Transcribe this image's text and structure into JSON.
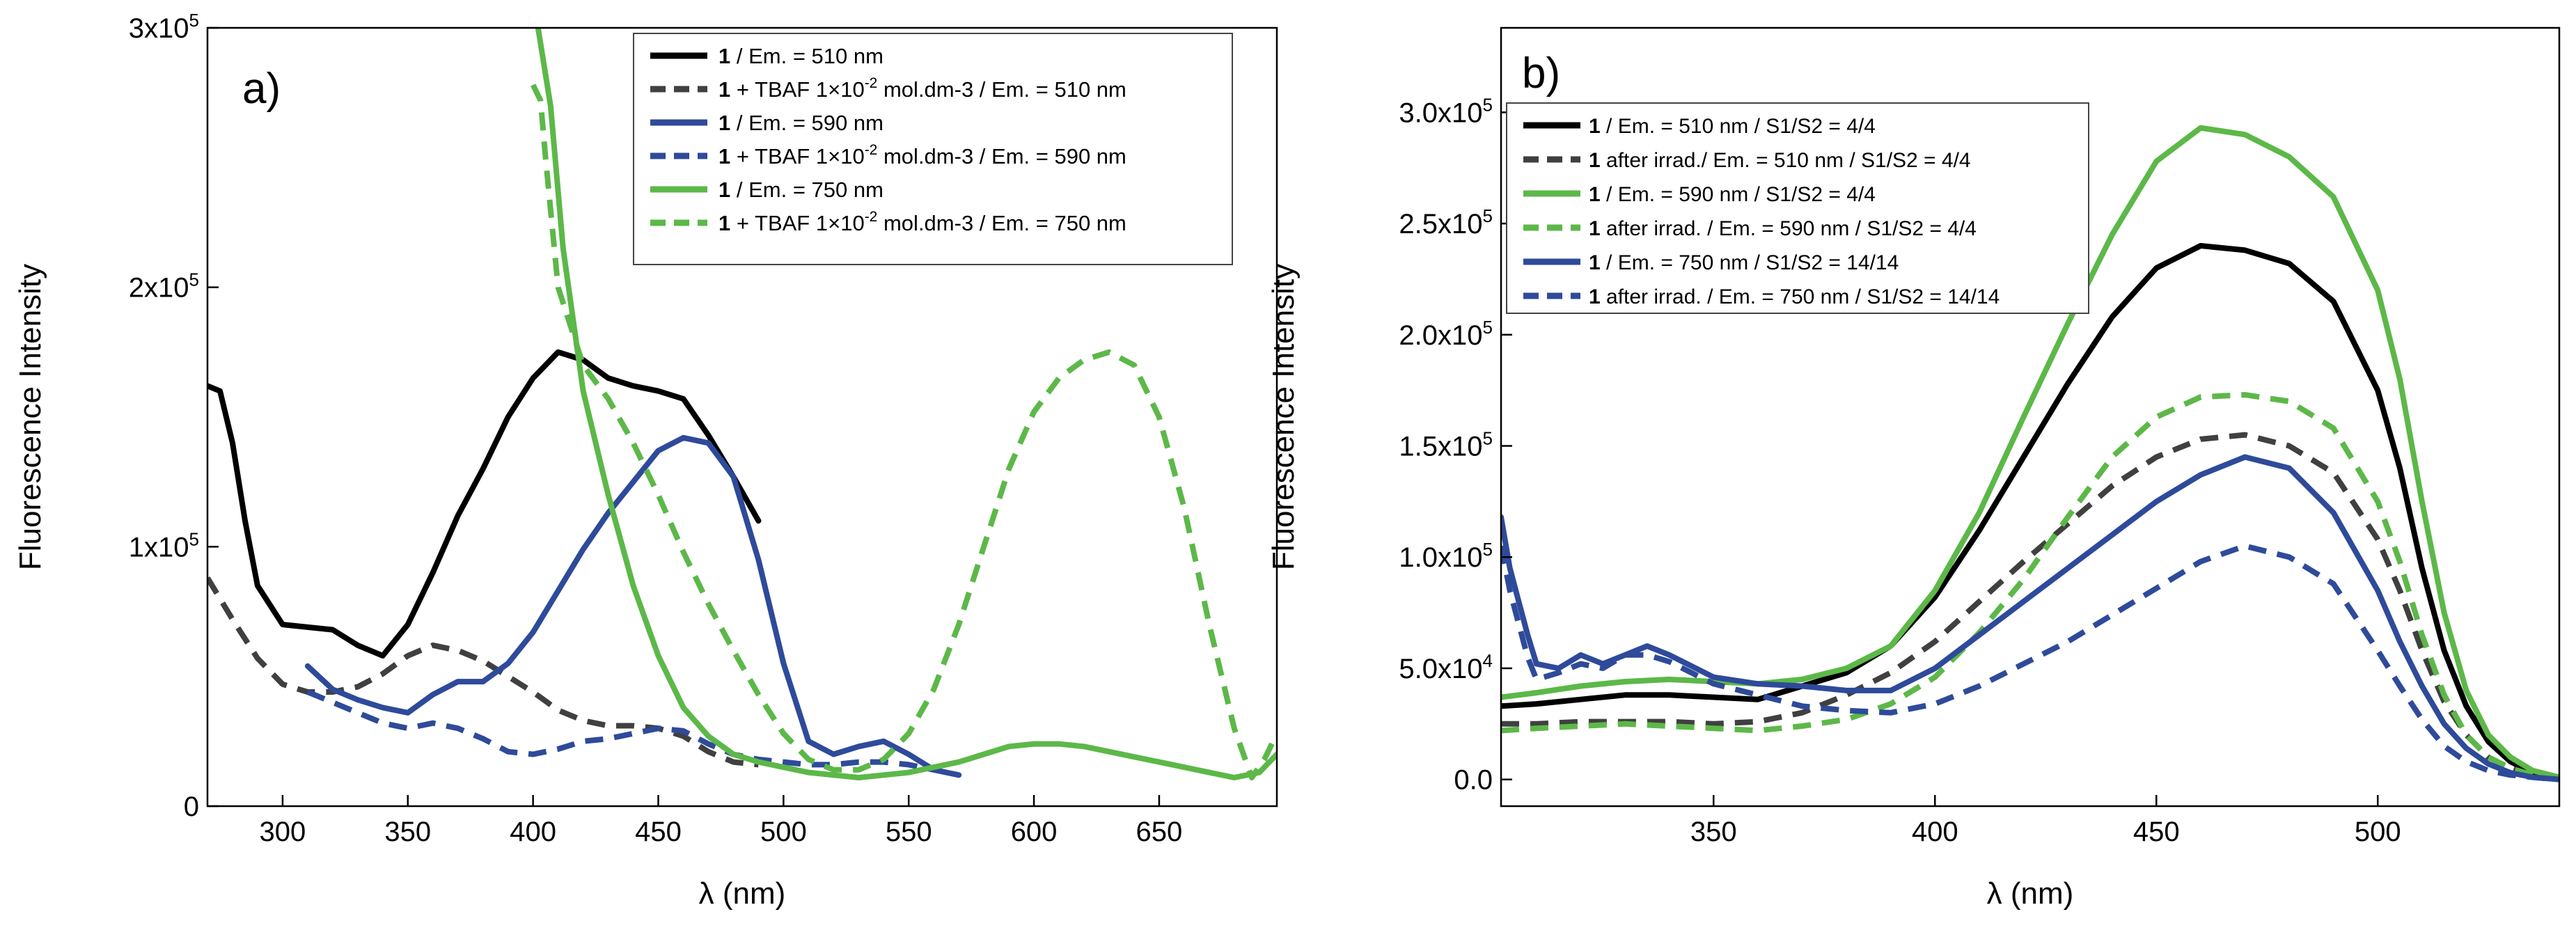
{
  "figure_name": "fluorescence-spectra-figure",
  "chart_data": [
    {
      "type": "line",
      "panel_label": "a)",
      "xlabel": "λ (nm)",
      "ylabel": "Fluorescence Intensity",
      "xlim": [
        270,
        697
      ],
      "ylim": [
        0,
        300000
      ],
      "xticks": [
        300,
        350,
        400,
        450,
        500,
        550,
        600,
        650
      ],
      "xtick_labels": [
        "300",
        "350",
        "400",
        "450",
        "500",
        "550",
        "600",
        "650"
      ],
      "yticks": [
        0,
        100000,
        200000,
        300000
      ],
      "ytick_labels": [
        {
          "base": "0",
          "exp": ""
        },
        {
          "base": "1x10",
          "exp": "5"
        },
        {
          "base": "2x10",
          "exp": "5"
        },
        {
          "base": "3x10",
          "exp": "5"
        }
      ],
      "legend_position": "top-right",
      "series": [
        {
          "name": "1 / Em. = 510 nm",
          "compound": "1",
          "text": " / Em. = 510 nm",
          "exp": "",
          "tail": "",
          "color": "#000000",
          "dash": "solid",
          "x": [
            270,
            275,
            280,
            285,
            290,
            300,
            310,
            320,
            330,
            340,
            350,
            360,
            370,
            380,
            390,
            400,
            410,
            420,
            430,
            440,
            450,
            460,
            470,
            480,
            490
          ],
          "y": [
            162000,
            160000,
            140000,
            110000,
            85000,
            70000,
            69000,
            68000,
            62000,
            58000,
            70000,
            90000,
            112000,
            130000,
            150000,
            165000,
            175000,
            172000,
            165000,
            162000,
            160000,
            157000,
            143000,
            127000,
            110000
          ]
        },
        {
          "name": "1 + TBAF 1x10-2 mol.dm-3 / Em. = 510 nm",
          "compound": "1",
          "text": " + TBAF 1×10",
          "exp": "-2",
          "tail": " mol.dm-3 / Em. = 510 nm",
          "color": "#404040",
          "dash": "dashed",
          "x": [
            270,
            280,
            290,
            300,
            310,
            320,
            330,
            340,
            350,
            360,
            370,
            380,
            390,
            400,
            410,
            420,
            430,
            440,
            450,
            460,
            470,
            480,
            490
          ],
          "y": [
            88000,
            72000,
            57000,
            47000,
            44000,
            44000,
            46000,
            51000,
            58000,
            62000,
            60000,
            56000,
            50000,
            44000,
            37000,
            33000,
            31000,
            31000,
            30000,
            27000,
            21000,
            17000,
            16000
          ]
        },
        {
          "name": "1 / Em. = 590 nm",
          "compound": "1",
          "text": " / Em. = 590 nm",
          "exp": "",
          "tail": "",
          "color": "#2e4a9a",
          "dash": "solid",
          "x": [
            310,
            320,
            330,
            340,
            350,
            360,
            370,
            380,
            390,
            400,
            410,
            420,
            430,
            440,
            450,
            460,
            470,
            480,
            490,
            500,
            510,
            520,
            530,
            540,
            550,
            560,
            570
          ],
          "y": [
            54000,
            45000,
            41000,
            38000,
            36000,
            43000,
            48000,
            48000,
            55000,
            67000,
            83000,
            99000,
            113000,
            125000,
            137000,
            142000,
            140000,
            127000,
            95000,
            55000,
            25000,
            20000,
            23000,
            25000,
            20000,
            14000,
            12000
          ]
        },
        {
          "name": "1 + TBAF 1x10-2 mol.dm-3 / Em. = 590 nm",
          "compound": "1",
          "text": " + TBAF 1×10",
          "exp": "-2",
          "tail": " mol.dm-3 / Em. = 590 nm",
          "color": "#2e4a9a",
          "dash": "dashed",
          "x": [
            310,
            320,
            330,
            340,
            350,
            360,
            370,
            380,
            390,
            400,
            410,
            420,
            430,
            440,
            450,
            460,
            470,
            480,
            490,
            500,
            510,
            520,
            530,
            540,
            550,
            560
          ],
          "y": [
            44000,
            40000,
            36000,
            32000,
            30000,
            32000,
            30000,
            26000,
            21000,
            20000,
            22000,
            25000,
            26000,
            28000,
            30000,
            29000,
            24000,
            20000,
            18000,
            17000,
            16000,
            16000,
            17000,
            17000,
            16000,
            14000
          ]
        },
        {
          "name": "1 / Em. = 750 nm",
          "compound": "1",
          "text": " / Em. = 750 nm",
          "exp": "",
          "tail": "",
          "color": "#5cb848",
          "dash": "solid",
          "x": [
            402,
            407,
            412,
            420,
            430,
            440,
            450,
            460,
            470,
            480,
            490,
            500,
            510,
            520,
            530,
            540,
            550,
            560,
            570,
            580,
            590,
            600,
            610,
            620,
            630,
            640,
            650,
            660,
            670,
            680,
            690,
            697
          ],
          "y": [
            300000,
            270000,
            215000,
            160000,
            120000,
            85000,
            58000,
            38000,
            27000,
            20000,
            17000,
            15000,
            13000,
            12000,
            11000,
            12000,
            13000,
            15000,
            17000,
            20000,
            23000,
            24000,
            24000,
            23000,
            21000,
            19000,
            17000,
            15000,
            13000,
            11000,
            13000,
            20000
          ]
        },
        {
          "name": "1 + TBAF 1x10-2 mol.dm-3 / Em. = 750 nm",
          "compound": "1",
          "text": " + TBAF 1×10",
          "exp": "-2",
          "tail": " mol.dm-3 / Em. = 750 nm",
          "color": "#5cb848",
          "dash": "dashed",
          "x": [
            400,
            403,
            405,
            410,
            420,
            430,
            440,
            450,
            460,
            470,
            480,
            490,
            500,
            510,
            520,
            530,
            540,
            550,
            560,
            570,
            580,
            590,
            600,
            610,
            620,
            630,
            640,
            650,
            660,
            670,
            680,
            687,
            692,
            697
          ],
          "y": [
            278000,
            272000,
            250000,
            200000,
            170000,
            157000,
            140000,
            120000,
            98000,
            78000,
            60000,
            43000,
            28000,
            18000,
            14000,
            14000,
            18000,
            28000,
            45000,
            70000,
            100000,
            130000,
            152000,
            165000,
            172000,
            175000,
            170000,
            150000,
            115000,
            70000,
            30000,
            11000,
            18000,
            28000
          ]
        }
      ]
    },
    {
      "type": "line",
      "panel_label": "b)",
      "xlabel": "λ (nm)",
      "ylabel": "Fluorescence Intensity",
      "xlim": [
        302,
        541
      ],
      "ylim": [
        -12000,
        338000
      ],
      "xticks": [
        350,
        400,
        450,
        500
      ],
      "xtick_labels": [
        "350",
        "400",
        "450",
        "500"
      ],
      "yticks": [
        0,
        50000,
        100000,
        150000,
        200000,
        250000,
        300000
      ],
      "ytick_labels": [
        {
          "base": "0.0",
          "exp": ""
        },
        {
          "base": "5.0x10",
          "exp": "4"
        },
        {
          "base": "1.0x10",
          "exp": "5"
        },
        {
          "base": "1.5x10",
          "exp": "5"
        },
        {
          "base": "2.0x10",
          "exp": "5"
        },
        {
          "base": "2.5x10",
          "exp": "5"
        },
        {
          "base": "3.0x10",
          "exp": "5"
        }
      ],
      "legend_position": "top-left",
      "series": [
        {
          "name": "1 / Em. = 510 nm / S1/S2 = 4/4",
          "compound": "1",
          "text": " / Em. = 510 nm / S1/S2 = 4/4",
          "color": "#000000",
          "dash": "solid",
          "x": [
            302,
            310,
            320,
            330,
            340,
            350,
            360,
            370,
            380,
            390,
            400,
            410,
            420,
            430,
            440,
            450,
            460,
            470,
            480,
            490,
            500,
            505,
            510,
            515,
            520,
            525,
            530,
            535,
            541
          ],
          "y": [
            33000,
            34000,
            36000,
            38000,
            38000,
            37000,
            36000,
            42000,
            48000,
            60000,
            82000,
            112000,
            145000,
            178000,
            208000,
            230000,
            240000,
            238000,
            232000,
            215000,
            175000,
            140000,
            95000,
            58000,
            33000,
            17000,
            8000,
            3000,
            0
          ]
        },
        {
          "name": "1 after irrad./ Em. = 510 nm / S1/S2 = 4/4",
          "compound": "1",
          "text": " after irrad./ Em. = 510 nm / S1/S2 = 4/4",
          "color": "#404040",
          "dash": "dashed",
          "x": [
            302,
            310,
            320,
            330,
            340,
            350,
            360,
            370,
            380,
            390,
            400,
            410,
            420,
            430,
            440,
            450,
            460,
            470,
            480,
            490,
            500,
            505,
            510,
            515,
            520,
            525,
            530,
            535,
            541
          ],
          "y": [
            25000,
            25000,
            26000,
            26000,
            26000,
            25000,
            26000,
            30000,
            38000,
            48000,
            62000,
            80000,
            98000,
            115000,
            132000,
            145000,
            153000,
            155000,
            150000,
            138000,
            108000,
            85000,
            58000,
            35000,
            20000,
            10000,
            5000,
            2000,
            0
          ]
        },
        {
          "name": "1 / Em. = 590 nm / S1/S2 = 4/4",
          "compound": "1",
          "text": " / Em. = 590 nm / S1/S2 = 4/4",
          "color": "#5cb848",
          "dash": "solid",
          "x": [
            302,
            310,
            320,
            330,
            340,
            350,
            360,
            370,
            380,
            390,
            400,
            410,
            420,
            430,
            440,
            450,
            460,
            470,
            480,
            490,
            500,
            505,
            510,
            515,
            520,
            525,
            530,
            535,
            541
          ],
          "y": [
            37000,
            39000,
            42000,
            44000,
            45000,
            44000,
            43000,
            45000,
            50000,
            60000,
            85000,
            120000,
            163000,
            205000,
            245000,
            278000,
            293000,
            290000,
            280000,
            262000,
            220000,
            180000,
            125000,
            75000,
            40000,
            20000,
            10000,
            4000,
            1000
          ]
        },
        {
          "name": "1 after irrad. / Em. = 590 nm / S1/S2 = 4/4",
          "compound": "1",
          "text": " after irrad. / Em. = 590 nm / S1/S2 = 4/4",
          "color": "#5cb848",
          "dash": "dashed",
          "x": [
            302,
            310,
            320,
            330,
            340,
            350,
            360,
            370,
            380,
            390,
            400,
            410,
            420,
            430,
            440,
            450,
            460,
            470,
            480,
            490,
            500,
            505,
            510,
            515,
            520,
            525,
            530,
            535,
            541
          ],
          "y": [
            22000,
            23000,
            24000,
            25000,
            24000,
            23000,
            22000,
            24000,
            27000,
            34000,
            46000,
            66000,
            90000,
            118000,
            145000,
            163000,
            172000,
            173000,
            170000,
            158000,
            125000,
            98000,
            65000,
            38000,
            20000,
            10000,
            5000,
            2000,
            0
          ]
        },
        {
          "name": "1 / Em. = 750 nm / S1/S2 = 14/14",
          "compound": "1",
          "text": " / Em. = 750 nm / S1/S2 = 14/14",
          "color": "#2e4a9a",
          "dash": "solid",
          "x": [
            302,
            304,
            306,
            308,
            310,
            315,
            320,
            325,
            330,
            335,
            340,
            350,
            360,
            370,
            380,
            390,
            400,
            410,
            420,
            430,
            440,
            450,
            460,
            470,
            480,
            490,
            500,
            505,
            510,
            515,
            520,
            525,
            530,
            535,
            541
          ],
          "y": [
            118000,
            95000,
            80000,
            65000,
            52000,
            50000,
            56000,
            52000,
            56000,
            60000,
            56000,
            46000,
            43000,
            42000,
            40000,
            40000,
            50000,
            65000,
            80000,
            95000,
            110000,
            125000,
            137000,
            145000,
            140000,
            120000,
            85000,
            62000,
            42000,
            25000,
            14000,
            7000,
            3000,
            1000,
            0
          ]
        },
        {
          "name": "1 after irrad. / Em. = 750 nm / S1/S2 = 14/14",
          "compound": "1",
          "text": " after irrad. / Em. = 750 nm / S1/S2 = 14/14",
          "color": "#2e4a9a",
          "dash": "dashed",
          "x": [
            302,
            304,
            306,
            308,
            310,
            315,
            320,
            325,
            330,
            335,
            340,
            350,
            360,
            370,
            380,
            390,
            400,
            410,
            420,
            430,
            440,
            450,
            460,
            470,
            480,
            490,
            500,
            505,
            510,
            515,
            520,
            525,
            530,
            535,
            541
          ],
          "y": [
            105000,
            85000,
            70000,
            55000,
            45000,
            48000,
            52000,
            50000,
            56000,
            56000,
            53000,
            43000,
            38000,
            33000,
            31000,
            30000,
            34000,
            42000,
            52000,
            62000,
            74000,
            86000,
            98000,
            105000,
            100000,
            88000,
            58000,
            42000,
            27000,
            15000,
            8000,
            4000,
            2000,
            1000,
            0
          ]
        }
      ]
    }
  ]
}
